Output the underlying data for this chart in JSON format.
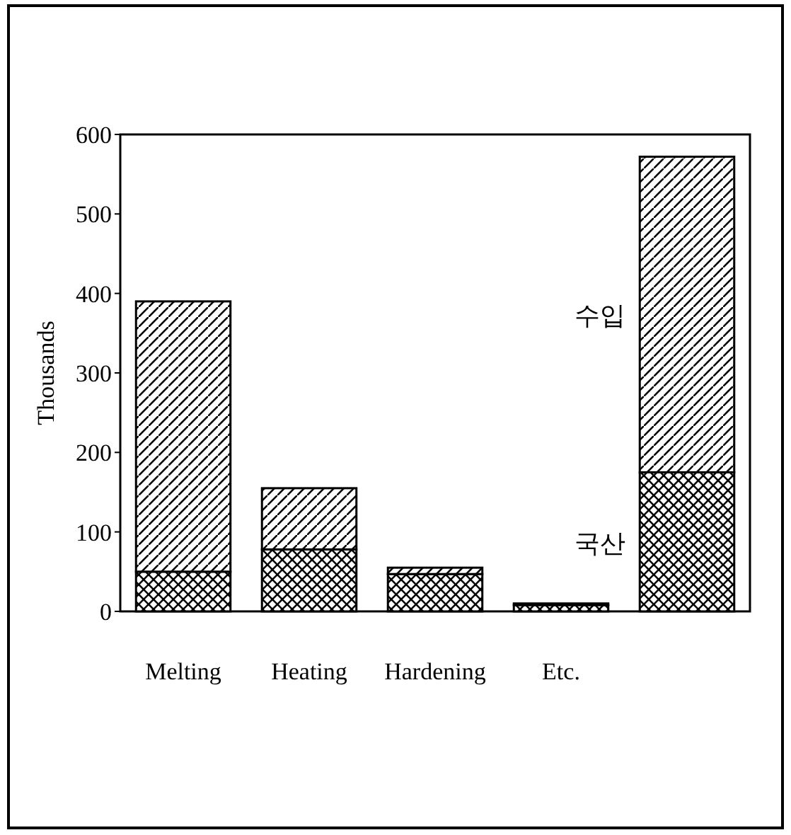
{
  "chart_data": {
    "type": "bar",
    "stacked": true,
    "ylabel": "Thousands",
    "categories": [
      "Melting",
      "Heating",
      "Hardening",
      "Etc.",
      null
    ],
    "series": [
      {
        "name": "국산",
        "color": "#000000",
        "values": [
          50,
          78,
          47,
          8,
          175
        ]
      },
      {
        "name": "수입",
        "color": "#000000",
        "values": [
          340,
          77,
          8,
          2,
          397
        ]
      }
    ],
    "ylim": [
      0,
      600
    ],
    "yticks": [
      0,
      100,
      200,
      300,
      400,
      500,
      600
    ]
  }
}
